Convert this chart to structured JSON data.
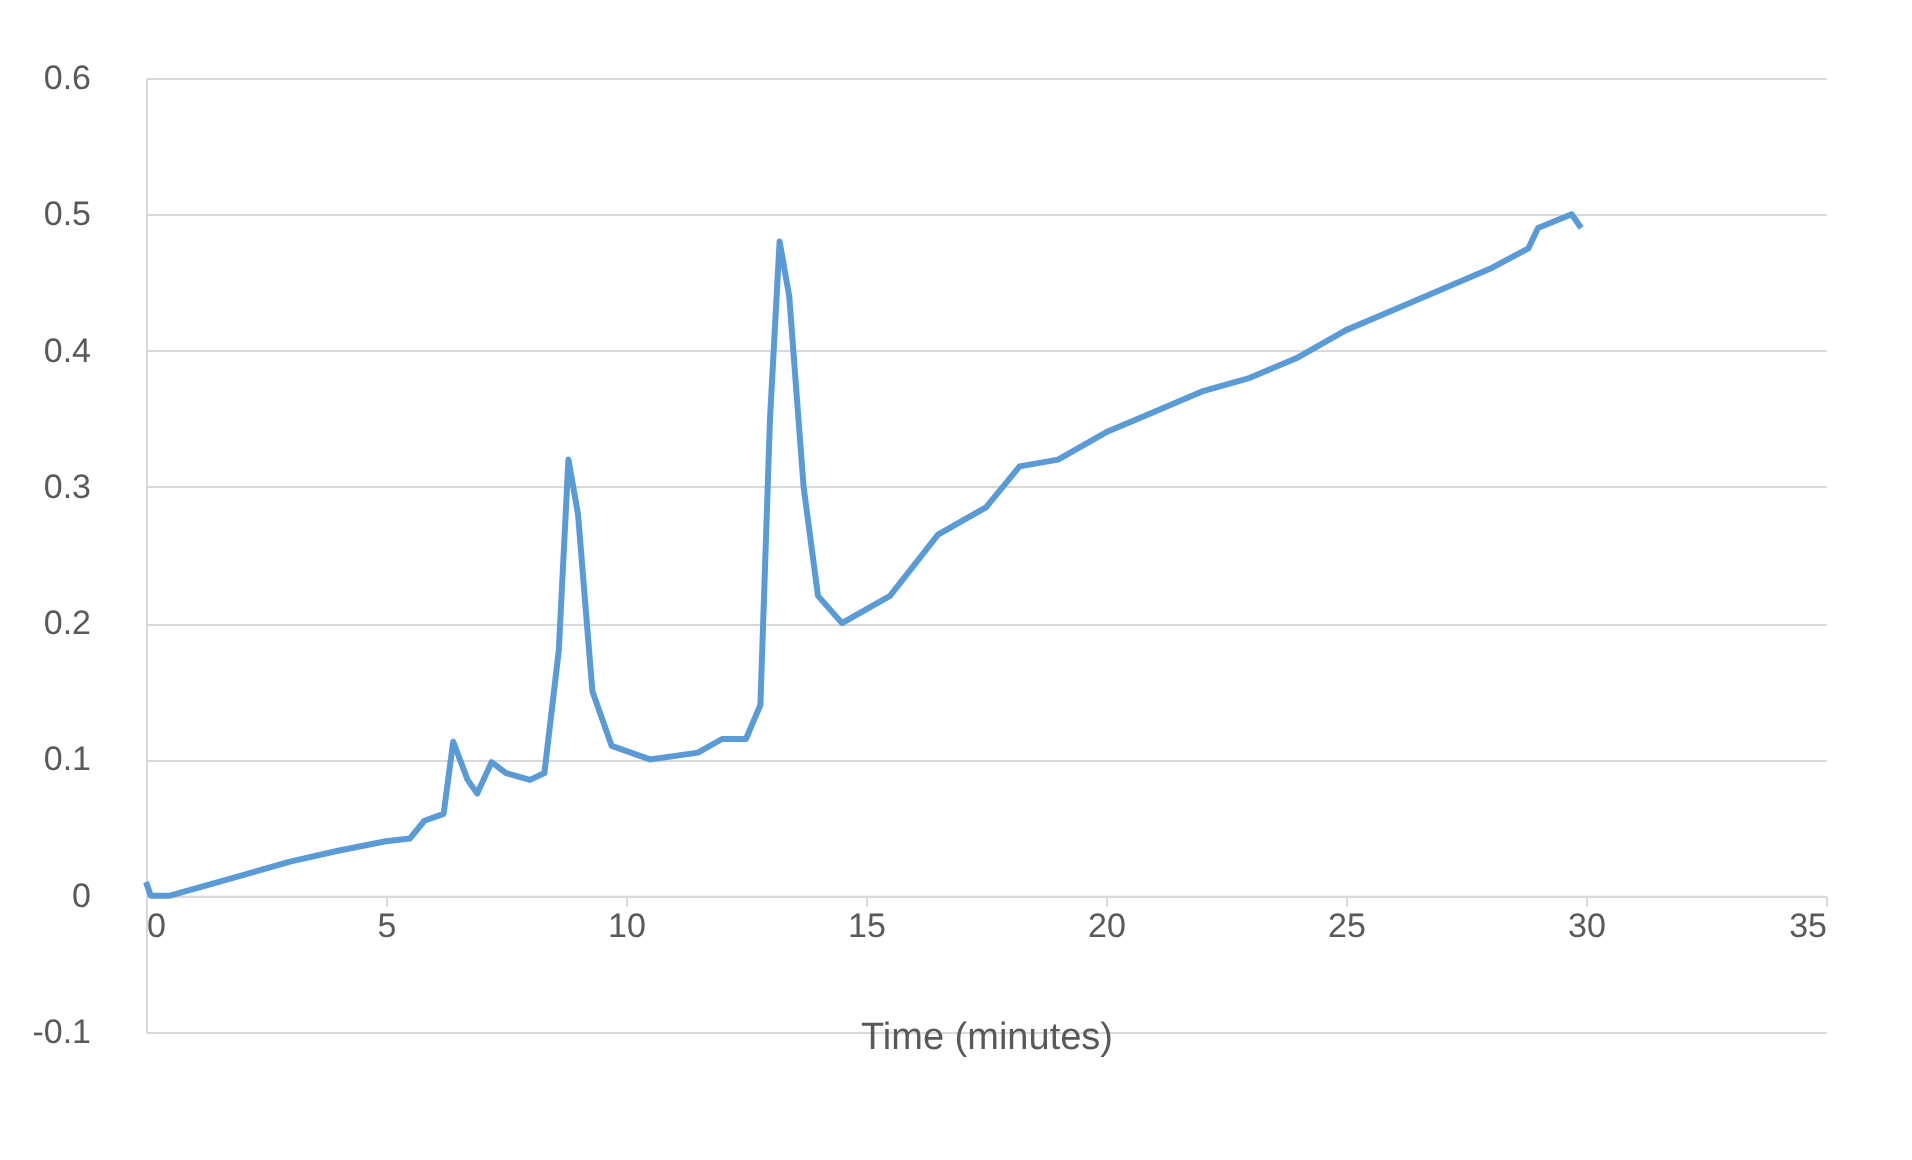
{
  "chart_data": {
    "type": "line",
    "xlabel": "Time (minutes)",
    "xlim": [
      0,
      35
    ],
    "xticks": [
      0,
      5,
      10,
      15,
      20,
      25,
      30,
      35
    ],
    "ylim": [
      -0.1,
      0.6
    ],
    "yticks": [
      -0.1,
      0,
      0.1,
      0.2,
      0.3,
      0.4,
      0.5,
      0.6
    ],
    "grid": "y",
    "legend": false,
    "marker": "none",
    "line_style": "solid",
    "series": [
      {
        "color": "#5b9bd5",
        "x": [
          0,
          0.1,
          0.5,
          1,
          2,
          3,
          4,
          5,
          5.5,
          5.8,
          6.2,
          6.4,
          6.7,
          6.9,
          7.2,
          7.5,
          8,
          8.3,
          8.6,
          8.8,
          9.0,
          9.3,
          9.7,
          10.5,
          11.5,
          12,
          12.5,
          12.8,
          13.0,
          13.2,
          13.4,
          13.7,
          14,
          14.5,
          15.5,
          16.5,
          17.5,
          18.2,
          19,
          20,
          21,
          22,
          23,
          24,
          25,
          26,
          27,
          28,
          28.8,
          29,
          29.7,
          29.9
        ],
        "values": [
          0.01,
          0,
          0,
          0.005,
          0.015,
          0.025,
          0.033,
          0.04,
          0.042,
          0.055,
          0.06,
          0.113,
          0.085,
          0.075,
          0.098,
          0.09,
          0.085,
          0.09,
          0.18,
          0.32,
          0.28,
          0.15,
          0.11,
          0.1,
          0.105,
          0.115,
          0.115,
          0.14,
          0.35,
          0.48,
          0.44,
          0.3,
          0.22,
          0.2,
          0.22,
          0.265,
          0.285,
          0.315,
          0.32,
          0.34,
          0.355,
          0.37,
          0.38,
          0.395,
          0.415,
          0.43,
          0.445,
          0.46,
          0.475,
          0.49,
          0.5,
          0.49
        ]
      }
    ]
  }
}
